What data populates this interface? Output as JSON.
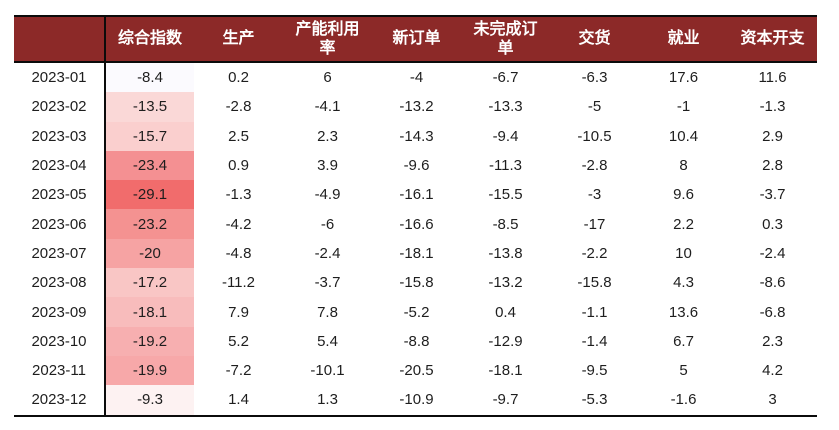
{
  "colors": {
    "page_background": "#ffffff",
    "header_bg": "#8C2928",
    "header_text": "#ffffff",
    "border": "#0b0b0b",
    "body_text": "#1e1e1e",
    "heat_strongest": "#F16C6C",
    "heat_lightest": "#FBFAFE"
  },
  "table": {
    "corner_label": "",
    "columns": [
      "综合指数",
      "生产",
      "产能利用率",
      "新订单",
      "未完成订单",
      "交货",
      "就业",
      "资本开支"
    ],
    "rows": [
      {
        "label": "2023-01",
        "cells": [
          "-8.4",
          "0.2",
          "6",
          "-4",
          "-6.7",
          "-6.3",
          "17.6",
          "11.6"
        ],
        "heat": "#FBFAFE"
      },
      {
        "label": "2023-02",
        "cells": [
          "-13.5",
          "-2.8",
          "-4.1",
          "-13.2",
          "-13.3",
          "-5",
          "-1",
          "-1.3"
        ],
        "heat": "#FAD8D7"
      },
      {
        "label": "2023-03",
        "cells": [
          "-15.7",
          "2.5",
          "2.3",
          "-14.3",
          "-9.4",
          "-10.5",
          "10.4",
          "2.9"
        ],
        "heat": "#FACFCE"
      },
      {
        "label": "2023-04",
        "cells": [
          "-23.4",
          "0.9",
          "3.9",
          "-9.6",
          "-11.3",
          "-2.8",
          "8",
          "2.8"
        ],
        "heat": "#F49092"
      },
      {
        "label": "2023-05",
        "cells": [
          "-29.1",
          "-1.3",
          "-4.9",
          "-16.1",
          "-15.5",
          "-3",
          "9.6",
          "-3.7"
        ],
        "heat": "#F16C6C"
      },
      {
        "label": "2023-06",
        "cells": [
          "-23.2",
          "-4.2",
          "-6",
          "-16.6",
          "-8.5",
          "-17",
          "2.2",
          "0.3"
        ],
        "heat": "#F49291"
      },
      {
        "label": "2023-07",
        "cells": [
          "-20",
          "-4.8",
          "-2.4",
          "-18.1",
          "-13.8",
          "-2.2",
          "10",
          "-2.4"
        ],
        "heat": "#F6A3A3"
      },
      {
        "label": "2023-08",
        "cells": [
          "-17.2",
          "-11.2",
          "-3.7",
          "-15.8",
          "-13.2",
          "-15.8",
          "4.3",
          "-8.6"
        ],
        "heat": "#F9C6C5"
      },
      {
        "label": "2023-09",
        "cells": [
          "-18.1",
          "7.9",
          "7.8",
          "-5.2",
          "0.4",
          "-1.1",
          "13.6",
          "-6.8"
        ],
        "heat": "#F8BCBC"
      },
      {
        "label": "2023-10",
        "cells": [
          "-19.2",
          "5.2",
          "5.4",
          "-8.8",
          "-12.9",
          "-1.4",
          "6.7",
          "2.3"
        ],
        "heat": "#F7AFB0"
      },
      {
        "label": "2023-11",
        "cells": [
          "-19.9",
          "-7.2",
          "-10.1",
          "-20.5",
          "-18.1",
          "-9.5",
          "5",
          "4.2"
        ],
        "heat": "#F7A8A9"
      },
      {
        "label": "2023-12",
        "cells": [
          "-9.3",
          "1.4",
          "1.3",
          "-10.9",
          "-9.7",
          "-5.3",
          "-1.6",
          "3"
        ],
        "heat": "#FDF2F2"
      }
    ]
  },
  "chart_data": {
    "type": "table",
    "subtype": "heatmap-first-column",
    "title": "",
    "categories": [
      "2023-01",
      "2023-02",
      "2023-03",
      "2023-04",
      "2023-05",
      "2023-06",
      "2023-07",
      "2023-08",
      "2023-09",
      "2023-10",
      "2023-11",
      "2023-12"
    ],
    "series": [
      {
        "name": "综合指数",
        "values": [
          -8.4,
          -13.5,
          -15.7,
          -23.4,
          -29.1,
          -23.2,
          -20,
          -17.2,
          -18.1,
          -19.2,
          -19.9,
          -9.3
        ]
      },
      {
        "name": "生产",
        "values": [
          0.2,
          -2.8,
          2.5,
          0.9,
          -1.3,
          -4.2,
          -4.8,
          -11.2,
          7.9,
          5.2,
          -7.2,
          1.4
        ]
      },
      {
        "name": "产能利用率",
        "values": [
          6,
          -4.1,
          2.3,
          3.9,
          -4.9,
          -6,
          -2.4,
          -3.7,
          7.8,
          5.4,
          -10.1,
          1.3
        ]
      },
      {
        "name": "新订单",
        "values": [
          -4,
          -13.2,
          -14.3,
          -9.6,
          -16.1,
          -16.6,
          -18.1,
          -15.8,
          -5.2,
          -8.8,
          -20.5,
          -10.9
        ]
      },
      {
        "name": "未完成订单",
        "values": [
          -6.7,
          -13.3,
          -9.4,
          -11.3,
          -15.5,
          -8.5,
          -13.8,
          -13.2,
          0.4,
          -12.9,
          -18.1,
          -9.7
        ]
      },
      {
        "name": "交货",
        "values": [
          -6.3,
          -5,
          -10.5,
          -2.8,
          -3,
          -17,
          -2.2,
          -15.8,
          -1.1,
          -1.4,
          -9.5,
          -5.3
        ]
      },
      {
        "name": "就业",
        "values": [
          17.6,
          -1,
          10.4,
          8,
          9.6,
          2.2,
          10,
          4.3,
          13.6,
          6.7,
          5,
          -1.6
        ]
      },
      {
        "name": "资本开支",
        "values": [
          11.6,
          -1.3,
          2.9,
          2.8,
          -3.7,
          0.3,
          -2.4,
          -8.6,
          -6.8,
          2.3,
          4.2,
          3
        ]
      }
    ],
    "legend_position": "none",
    "grid": false,
    "notes": "First data column (综合指数) is conditionally shaded: more negative values are darker red."
  }
}
